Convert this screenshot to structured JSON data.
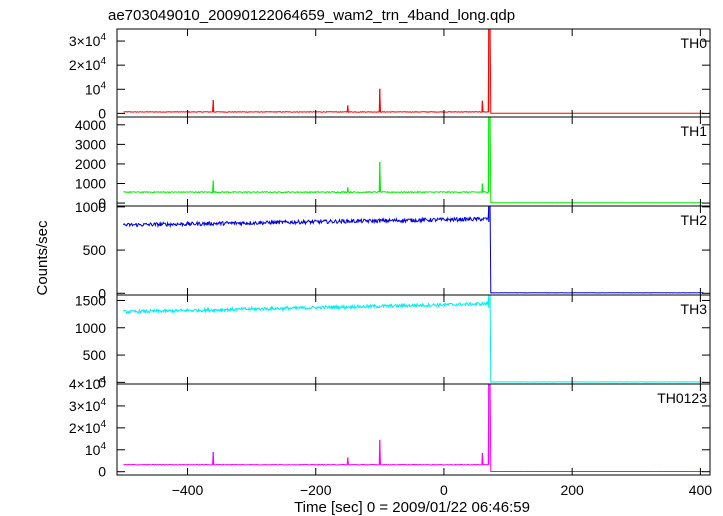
{
  "title": "ae703049010_20090122064659_wam2_trn_4band_long.qdp",
  "chart_data": {
    "type": "line",
    "title": "ae703049010_20090122064659_wam2_trn_4band_long.qdp",
    "xlabel": "Time [sec] 0 = 2009/01/22 06:46:59",
    "ylabel": "Counts/sec",
    "xlim": [
      -510,
      415
    ],
    "x_ticks": [
      -400,
      -200,
      0,
      200,
      400
    ],
    "x_tick_labels": [
      "−400",
      "−200",
      "0",
      "200",
      "400"
    ],
    "panels": [
      {
        "name": "TH0",
        "color": "#ff0000",
        "ylim": [
          -1500,
          35000
        ],
        "y_ticks": [
          0,
          10000,
          20000,
          30000
        ],
        "y_tick_labels": [
          {
            "mant": "0",
            "exp": ""
          },
          {
            "mant": "10",
            "exp": "4"
          },
          {
            "mant": "2×10",
            "exp": "4"
          },
          {
            "mant": "3×10",
            "exp": "4"
          }
        ],
        "baseline": 600,
        "noise": 120,
        "post_level": 40,
        "events": [
          {
            "x": -360,
            "y": 5500
          },
          {
            "x": -150,
            "y": 3300
          },
          {
            "x": -100,
            "y": 10200
          },
          {
            "x": 60,
            "y": 5200
          },
          {
            "x": 70,
            "y": 35000
          }
        ]
      },
      {
        "name": "TH1",
        "color": "#00ee00",
        "ylim": [
          -150,
          4400
        ],
        "y_ticks": [
          0,
          1000,
          2000,
          3000,
          4000
        ],
        "y_tick_labels": [
          {
            "mant": "0",
            "exp": ""
          },
          {
            "mant": "1000",
            "exp": ""
          },
          {
            "mant": "2000",
            "exp": ""
          },
          {
            "mant": "3000",
            "exp": ""
          },
          {
            "mant": "4000",
            "exp": ""
          }
        ],
        "baseline": 560,
        "noise": 25,
        "post_level": 10,
        "events": [
          {
            "x": -360,
            "y": 1150
          },
          {
            "x": -150,
            "y": 800
          },
          {
            "x": -100,
            "y": 2100
          },
          {
            "x": 60,
            "y": 1000
          },
          {
            "x": 70,
            "y": 4400
          }
        ]
      },
      {
        "name": "TH2",
        "color": "#0000dd",
        "ylim": [
          -20,
          1010
        ],
        "y_ticks": [
          0,
          500,
          1000
        ],
        "y_tick_labels": [
          {
            "mant": "0",
            "exp": ""
          },
          {
            "mant": "500",
            "exp": ""
          },
          {
            "mant": "1000",
            "exp": ""
          }
        ],
        "baseline_start": 790,
        "baseline_end": 860,
        "noise": 22,
        "post_level": 4,
        "events": [
          {
            "x": 70,
            "y": 1000
          }
        ]
      },
      {
        "name": "TH3",
        "color": "#00eeee",
        "ylim": [
          -30,
          1600
        ],
        "y_ticks": [
          0,
          500,
          1000,
          1500
        ],
        "y_tick_labels": [
          {
            "mant": "0",
            "exp": ""
          },
          {
            "mant": "500",
            "exp": ""
          },
          {
            "mant": "1000",
            "exp": ""
          },
          {
            "mant": "1500",
            "exp": ""
          }
        ],
        "baseline_start": 1290,
        "baseline_end": 1440,
        "noise": 30,
        "post_level": 6,
        "events": [
          {
            "x": 70,
            "y": 1550
          }
        ]
      },
      {
        "name": "TH0123",
        "color": "#ff00ff",
        "ylim": [
          -1500,
          40000
        ],
        "y_ticks": [
          0,
          10000,
          20000,
          30000,
          40000
        ],
        "y_tick_labels": [
          {
            "mant": "0",
            "exp": ""
          },
          {
            "mant": "10",
            "exp": "4"
          },
          {
            "mant": "2×10",
            "exp": "4"
          },
          {
            "mant": "3×10",
            "exp": "4"
          },
          {
            "mant": "4×10",
            "exp": "4"
          }
        ],
        "baseline": 3200,
        "noise": 150,
        "post_level": 80,
        "events": [
          {
            "x": -360,
            "y": 9000
          },
          {
            "x": -150,
            "y": 6500
          },
          {
            "x": -100,
            "y": 14500
          },
          {
            "x": 60,
            "y": 8500
          },
          {
            "x": 70,
            "y": 40000
          }
        ]
      }
    ],
    "grid": false,
    "legend": "none"
  }
}
